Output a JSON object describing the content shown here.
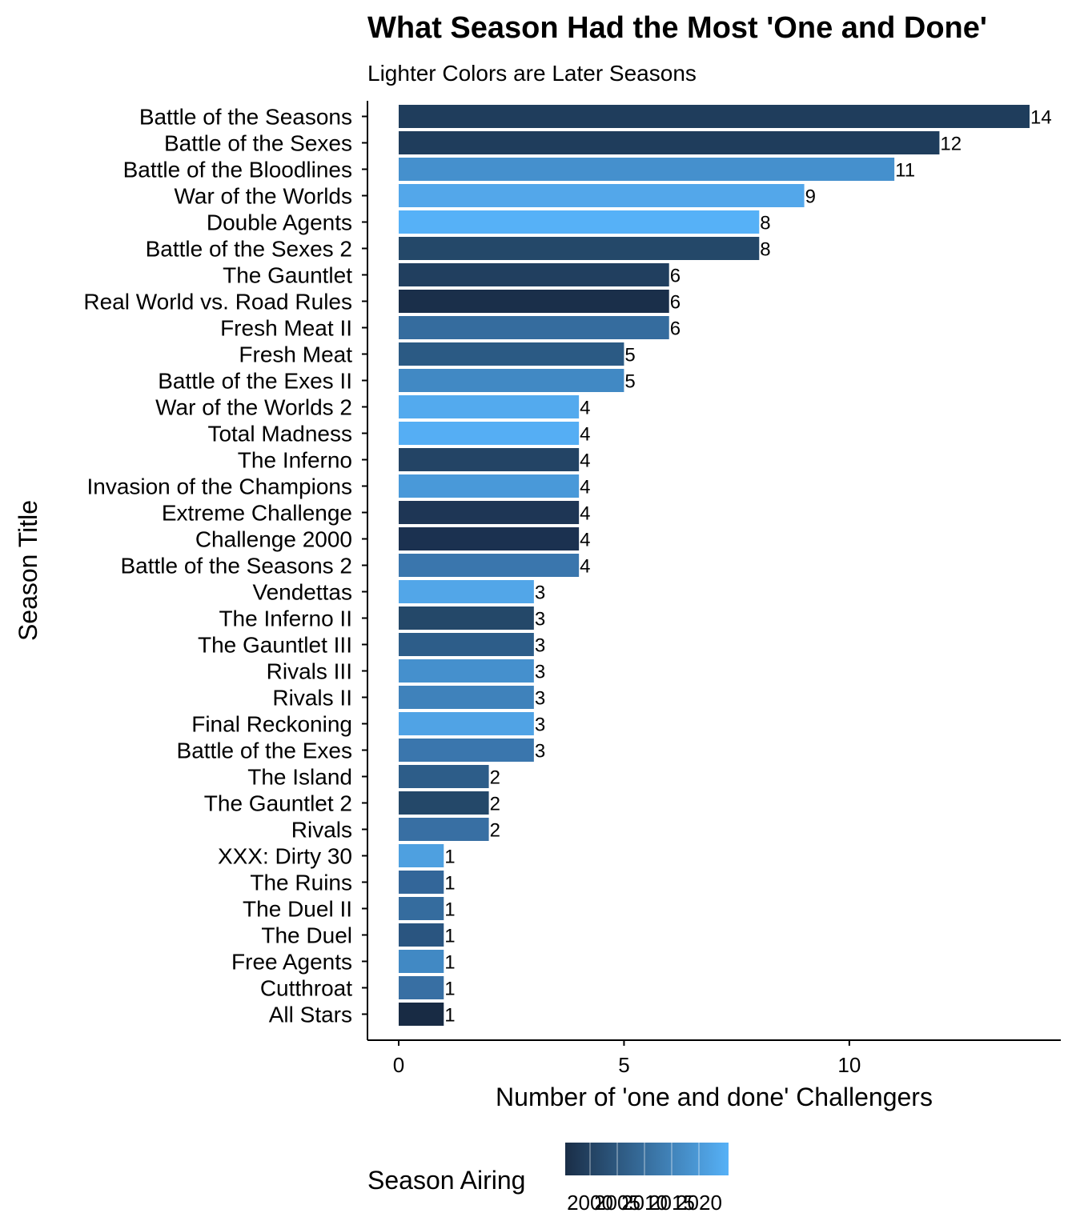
{
  "chart_data": {
    "type": "bar",
    "orientation": "horizontal",
    "title": "What Season Had the Most 'One and Done'",
    "subtitle": "Lighter Colors are Later Seasons",
    "xlabel": "Number of 'one and done' Challengers",
    "ylabel": "Season Title",
    "xlim": [
      0,
      14
    ],
    "x_ticks": [
      0,
      5,
      10
    ],
    "grid": false,
    "legend": {
      "title": "Season Airing",
      "position": "bottom",
      "type": "colorbar",
      "ticks": [
        2000,
        2005,
        2010,
        2015,
        2020
      ],
      "low_color": "#1a2e47",
      "high_color": "#56b1f7"
    },
    "categories": [
      "Battle of the Seasons",
      "Battle of the Sexes",
      "Battle of the Bloodlines",
      "War of the Worlds",
      "Double Agents",
      "Battle of the Sexes 2",
      "The Gauntlet",
      "Real World vs. Road Rules",
      "Fresh Meat II",
      "Fresh Meat",
      "Battle of the Exes II",
      "War of the Worlds 2",
      "Total Madness",
      "The Inferno",
      "Invasion of the Champions",
      "Extreme Challenge",
      "Challenge 2000",
      "Battle of the Seasons 2",
      "Vendettas",
      "The Inferno II",
      "The Gauntlet III",
      "Rivals III",
      "Rivals II",
      "Final Reckoning",
      "Battle of the Exes",
      "The Island",
      "The Gauntlet 2",
      "Rivals",
      "XXX: Dirty 30",
      "The Ruins",
      "The Duel II",
      "The Duel",
      "Free Agents",
      "Cutthroat",
      "All Stars"
    ],
    "values": [
      14,
      12,
      11,
      9,
      8,
      8,
      6,
      6,
      6,
      5,
      5,
      4,
      4,
      4,
      4,
      4,
      4,
      4,
      3,
      3,
      3,
      3,
      3,
      3,
      3,
      2,
      2,
      2,
      1,
      1,
      1,
      1,
      1,
      1,
      1
    ],
    "colors": [
      "#1f3d5c",
      "#1f3d5c",
      "#4590cd",
      "#53a7ea",
      "#56b1f7",
      "#244869",
      "#213f5f",
      "#1a2f4a",
      "#356c9e",
      "#2b5a84",
      "#4189c4",
      "#53aaee",
      "#55aef4",
      "#234465",
      "#4999d9",
      "#1e3655",
      "#1b3150",
      "#3a76ad",
      "#52a6e8",
      "#244869",
      "#2d5d89",
      "#4590cd",
      "#3f82bb",
      "#50a3e5",
      "#3a76ad",
      "#2d5d89",
      "#244869",
      "#386fa3",
      "#4ea0e0",
      "#336699",
      "#356c9e",
      "#2a5580",
      "#4189c4",
      "#386fa3",
      "#182b44"
    ]
  }
}
